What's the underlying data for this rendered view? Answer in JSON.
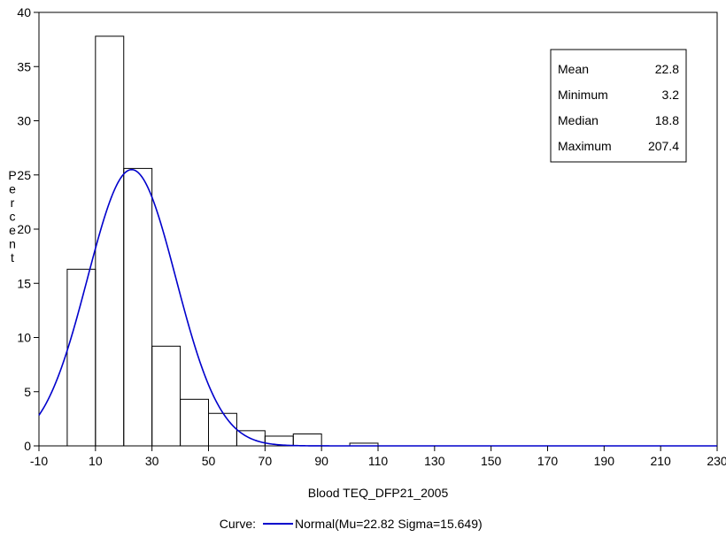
{
  "chart_data": {
    "type": "bar",
    "xlabel": "Blood TEQ_DFP21_2005",
    "ylabel": "Percent",
    "xlim": [
      -10,
      230
    ],
    "ylim": [
      0,
      40
    ],
    "x_ticks": [
      -10,
      10,
      30,
      50,
      70,
      90,
      110,
      130,
      150,
      170,
      190,
      210,
      230
    ],
    "y_ticks": [
      0,
      5,
      10,
      15,
      20,
      25,
      30,
      35,
      40
    ],
    "bin_width": 10,
    "bins": [
      {
        "center": 5,
        "value": 16.3
      },
      {
        "center": 15,
        "value": 37.8
      },
      {
        "center": 25,
        "value": 25.6
      },
      {
        "center": 35,
        "value": 9.2
      },
      {
        "center": 45,
        "value": 4.3
      },
      {
        "center": 55,
        "value": 3.0
      },
      {
        "center": 65,
        "value": 1.4
      },
      {
        "center": 75,
        "value": 0.9
      },
      {
        "center": 85,
        "value": 1.1
      },
      {
        "center": 95,
        "value": 0
      },
      {
        "center": 105,
        "value": 0.25
      }
    ],
    "curve": {
      "name": "Normal(Mu=22.82 Sigma=15.649)",
      "distribution": "normal",
      "mu": 22.82,
      "sigma": 15.649,
      "color": "#0000cc"
    },
    "legend": {
      "label": "Curve:",
      "placement": "bottom-center"
    },
    "stats": [
      {
        "name": "Mean",
        "value": "22.8"
      },
      {
        "name": "Minimum",
        "value": "3.2"
      },
      {
        "name": "Median",
        "value": "18.8"
      },
      {
        "name": "Maximum",
        "value": "207.4"
      }
    ],
    "stats_placement": "top-right"
  }
}
